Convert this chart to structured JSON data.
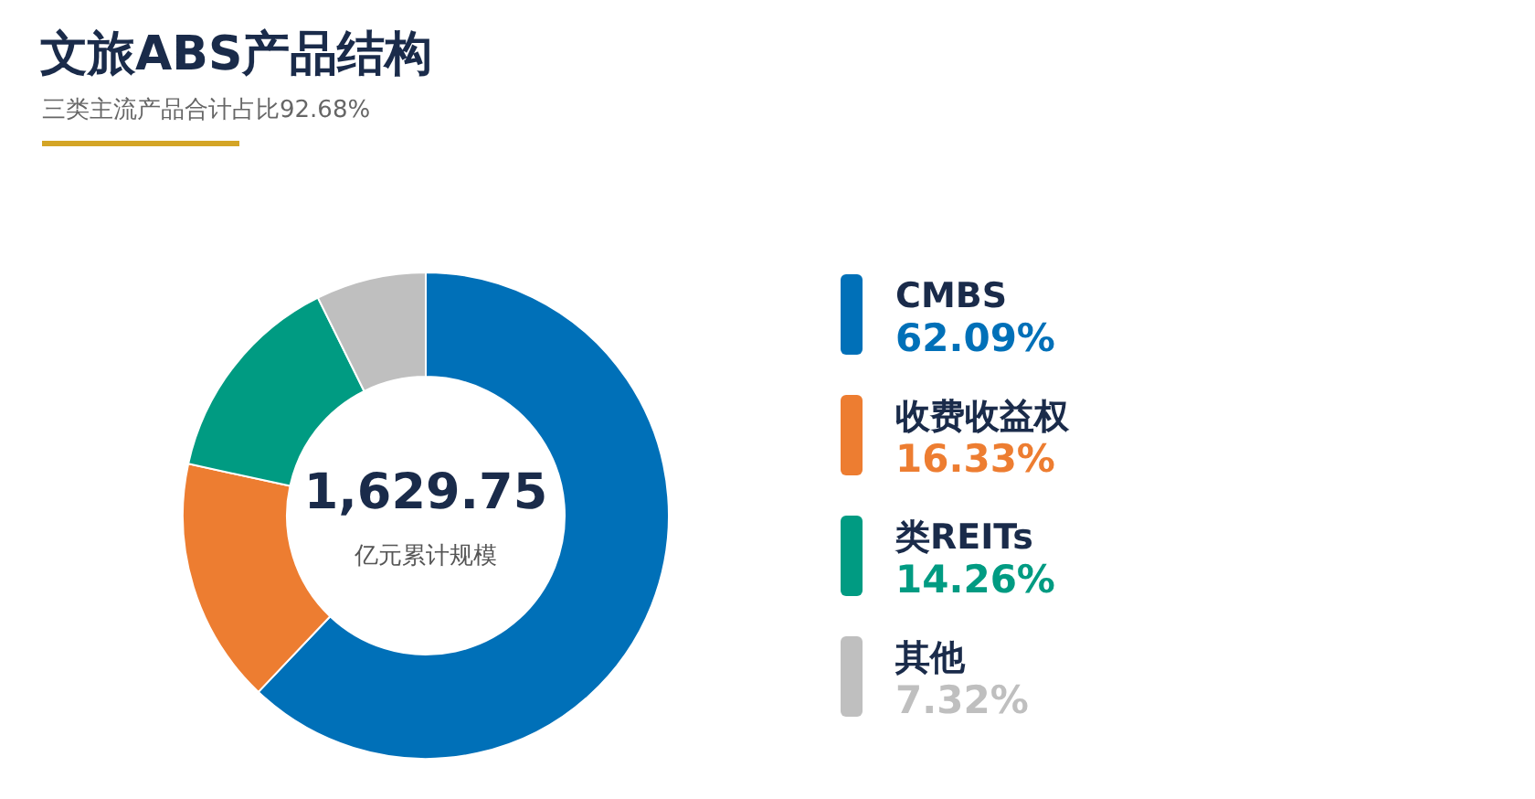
{
  "chart_data": {
    "type": "donut",
    "title": "文旅ABS产品结构",
    "subtitle": "三类主流产品合计占比92.68%",
    "categories": [
      "CMBS",
      "收费收益权",
      "类REITs",
      "其他"
    ],
    "values": [
      62.09,
      16.33,
      14.26,
      7.32
    ],
    "colors": [
      "#0070b8",
      "#ed7d31",
      "#009b82",
      "#bfbfbf"
    ],
    "value_labels": [
      "62.09%",
      "16.33%",
      "14.26%",
      "7.32%"
    ],
    "annotations": [
      "1,629.75",
      "亿元累计规模"
    ],
    "legend": "right"
  }
}
